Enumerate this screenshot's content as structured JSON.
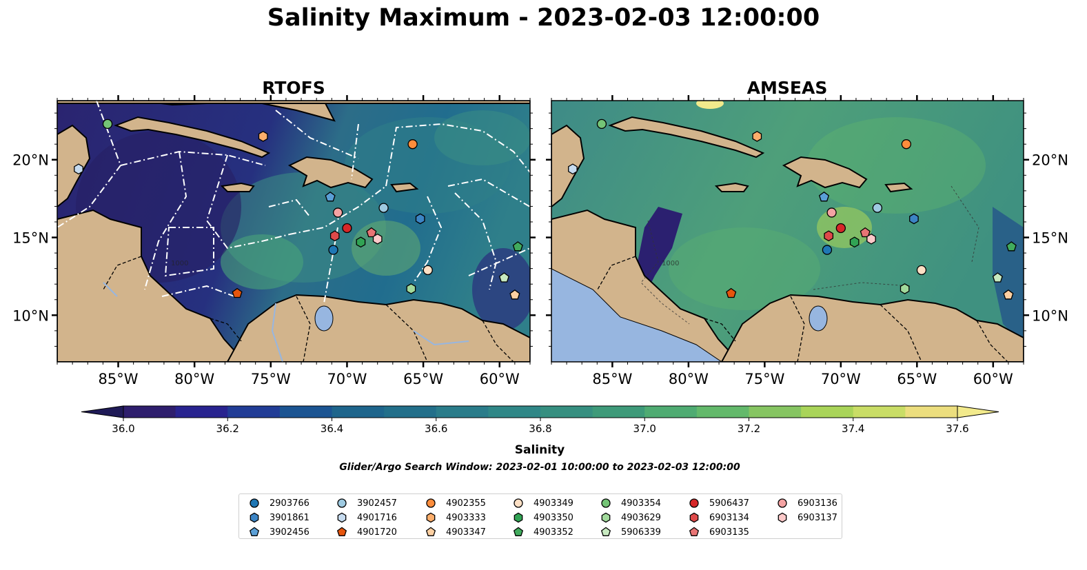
{
  "title": "Salinity Maximum - 2023-02-03 12:00:00",
  "panels": [
    {
      "title": "RTOFS"
    },
    {
      "title": "AMSEAS"
    }
  ],
  "axes": {
    "lon_ticks": [
      "85°W",
      "80°W",
      "75°W",
      "70°W",
      "65°W",
      "60°W"
    ],
    "lat_ticks": [
      "20°N",
      "15°N",
      "10°N"
    ],
    "lon_range": [
      -89,
      -58
    ],
    "lat_range": [
      7,
      23.8
    ],
    "contour_label": "1000"
  },
  "colorbar": {
    "label": "Salinity",
    "min": 36.0,
    "max": 37.6,
    "step": 0.1,
    "tick_labels": [
      "36.0",
      "36.2",
      "36.4",
      "36.6",
      "36.8",
      "37.0",
      "37.2",
      "37.4",
      "37.6"
    ],
    "colors": [
      "#2e1e6d",
      "#28238f",
      "#213c96",
      "#1b5492",
      "#1e658c",
      "#226f8a",
      "#2a7c8a",
      "#2f8787",
      "#368f80",
      "#3e9a79",
      "#4fab72",
      "#63b96b",
      "#86c562",
      "#a9d459",
      "#c9dd66",
      "#ecde7e"
    ],
    "under_color": "#1f1a57",
    "over_color": "#f2ea8c"
  },
  "search_window": "Glider/Argo Search Window: 2023-02-01 10:00:00 to 2023-02-03 12:00:00",
  "colors": {
    "land": "#d2b48c",
    "lake": "#97b6e0",
    "outline": "#000000"
  },
  "legend": [
    {
      "id": "2903766",
      "shape": "circle",
      "color": "#1f77b4",
      "lon": -70.9,
      "lat": 14.2
    },
    {
      "id": "3901861",
      "shape": "hexagon",
      "color": "#3c84c4",
      "lon": -65.2,
      "lat": 16.2
    },
    {
      "id": "3902456",
      "shape": "pentagon",
      "color": "#5a9fd6",
      "lon": -71.1,
      "lat": 17.6
    },
    {
      "id": "3902457",
      "shape": "circle",
      "color": "#9ecae1",
      "lon": -67.6,
      "lat": 16.9
    },
    {
      "id": "4901716",
      "shape": "hexagon",
      "color": "#c6dbef",
      "lon": -87.6,
      "lat": 19.4
    },
    {
      "id": "4901720",
      "shape": "pentagon",
      "color": "#e6550d",
      "lon": -77.2,
      "lat": 11.4
    },
    {
      "id": "4902355",
      "shape": "circle",
      "color": "#fd8d3c",
      "lon": -65.7,
      "lat": 21.0
    },
    {
      "id": "4903333",
      "shape": "hexagon",
      "color": "#fdae6b",
      "lon": -75.5,
      "lat": 21.5
    },
    {
      "id": "4903347",
      "shape": "pentagon",
      "color": "#fdd0a2",
      "lon": -59.0,
      "lat": 11.3
    },
    {
      "id": "4903349",
      "shape": "circle",
      "color": "#fde0c5",
      "lon": -64.7,
      "lat": 12.9
    },
    {
      "id": "4903350",
      "shape": "hexagon",
      "color": "#31a354",
      "lon": -69.1,
      "lat": 14.7
    },
    {
      "id": "4903352",
      "shape": "pentagon",
      "color": "#41ab5d",
      "lon": -58.8,
      "lat": 14.4
    },
    {
      "id": "4903354",
      "shape": "circle",
      "color": "#74c476",
      "lon": -85.7,
      "lat": 22.3
    },
    {
      "id": "4903629",
      "shape": "hexagon",
      "color": "#a1d99b",
      "lon": -65.8,
      "lat": 11.7
    },
    {
      "id": "5906339",
      "shape": "pentagon",
      "color": "#c7e9c0",
      "lon": -59.7,
      "lat": 12.4
    },
    {
      "id": "5906437",
      "shape": "circle",
      "color": "#d62728",
      "lon": -70.0,
      "lat": 15.6
    },
    {
      "id": "6903134",
      "shape": "hexagon",
      "color": "#de4a4a",
      "lon": -70.8,
      "lat": 15.1
    },
    {
      "id": "6903135",
      "shape": "pentagon",
      "color": "#e87474",
      "lon": -68.4,
      "lat": 15.3
    },
    {
      "id": "6903136",
      "shape": "circle",
      "color": "#f4a3a3",
      "lon": -70.6,
      "lat": 16.6
    },
    {
      "id": "6903137",
      "shape": "hexagon",
      "color": "#fcc9c9",
      "lon": -68.0,
      "lat": 14.9
    }
  ]
}
